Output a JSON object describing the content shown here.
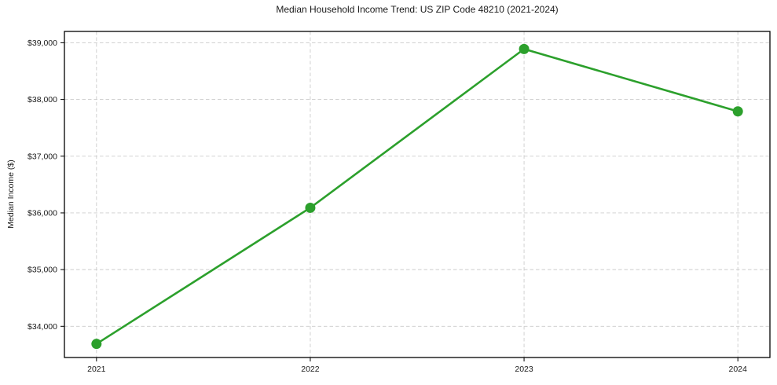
{
  "chart_data": {
    "type": "line",
    "title": "Median Household Income Trend: US ZIP Code 48210 (2021-2024)",
    "xlabel": "",
    "ylabel": "Median Income ($)",
    "x": [
      2021,
      2022,
      2023,
      2024
    ],
    "series": [
      {
        "name": "Median Household Income",
        "values": [
          33690,
          36090,
          38890,
          37790
        ]
      }
    ],
    "xticks": [
      2021,
      2022,
      2023,
      2024
    ],
    "xtick_labels": [
      "2021",
      "2022",
      "2023",
      "2024"
    ],
    "yticks": [
      34000,
      35000,
      36000,
      37000,
      38000,
      39000
    ],
    "ytick_labels": [
      "$34,000",
      "$35,000",
      "$36,000",
      "$37,000",
      "$38,000",
      "$39,000"
    ],
    "xlim": [
      2020.85,
      2024.15
    ],
    "ylim": [
      33450,
      39200
    ],
    "grid": true,
    "grid_style": "dashed",
    "legend": false,
    "line_color": "#2ca02c",
    "marker": "circle",
    "grid_color": "#cccccc",
    "spine_color": "#000000",
    "tick_color": "#000000",
    "background_color": "#ffffff"
  }
}
